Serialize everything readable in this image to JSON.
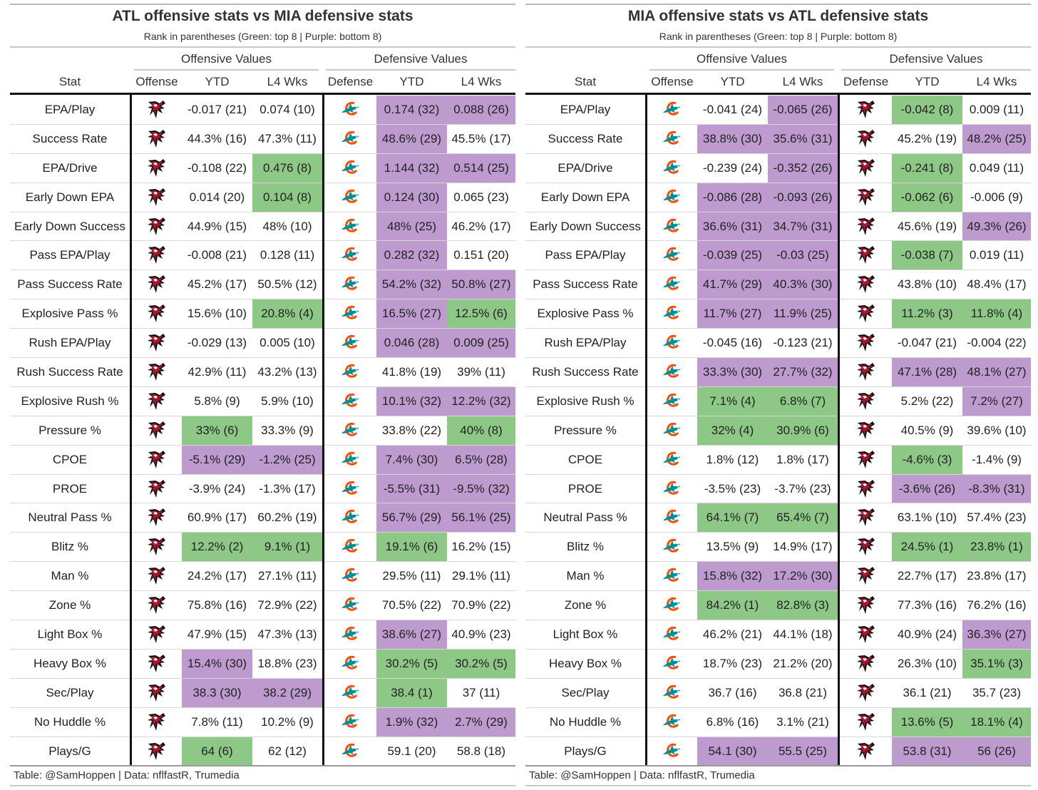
{
  "colors": {
    "green": "#8dc887",
    "purple": "#bd9bce",
    "falcons_red": "#a71930",
    "dolphins_aqua": "#008e97",
    "dolphins_orange": "#fc4c02"
  },
  "legend": {
    "g": "top 8",
    "p": "bottom 8"
  },
  "columns": {
    "stat": "Stat",
    "offense": "Offense",
    "defense": "Defense",
    "ytd": "YTD",
    "l4": "L4 Wks",
    "offensive_values": "Offensive Values",
    "defensive_values": "Defensive Values"
  },
  "panels": [
    {
      "title": "ATL offensive stats vs MIA defensive stats",
      "subtitle": "Rank in parentheses (Green: top 8 | Purple: bottom 8)",
      "offense_team": "ATL",
      "offense_logo": "falcons-logo-icon",
      "defense_team": "MIA",
      "defense_logo": "dolphins-logo-icon",
      "credit": "Table: @SamHoppen | Data: nflfastR, Trumedia",
      "rows": [
        {
          "stat": "EPA/Play",
          "off_ytd": "-0.017 (21)",
          "off_ytd_c": "",
          "off_l4": "0.074 (10)",
          "off_l4_c": "",
          "def_ytd": "0.174 (32)",
          "def_ytd_c": "p",
          "def_l4": "0.088 (26)",
          "def_l4_c": "p"
        },
        {
          "stat": "Success Rate",
          "off_ytd": "44.3% (16)",
          "off_ytd_c": "",
          "off_l4": "47.3% (11)",
          "off_l4_c": "",
          "def_ytd": "48.6% (29)",
          "def_ytd_c": "p",
          "def_l4": "45.5% (17)",
          "def_l4_c": ""
        },
        {
          "stat": "EPA/Drive",
          "off_ytd": "-0.108 (22)",
          "off_ytd_c": "",
          "off_l4": "0.476 (8)",
          "off_l4_c": "g",
          "def_ytd": "1.144 (32)",
          "def_ytd_c": "p",
          "def_l4": "0.514 (25)",
          "def_l4_c": "p"
        },
        {
          "stat": "Early Down EPA",
          "off_ytd": "0.014 (20)",
          "off_ytd_c": "",
          "off_l4": "0.104 (8)",
          "off_l4_c": "g",
          "def_ytd": "0.124 (30)",
          "def_ytd_c": "p",
          "def_l4": "0.065 (23)",
          "def_l4_c": ""
        },
        {
          "stat": "Early Down Success",
          "off_ytd": "44.9% (15)",
          "off_ytd_c": "",
          "off_l4": "48% (10)",
          "off_l4_c": "",
          "def_ytd": "48% (25)",
          "def_ytd_c": "p",
          "def_l4": "46.2% (17)",
          "def_l4_c": ""
        },
        {
          "stat": "Pass EPA/Play",
          "off_ytd": "-0.008 (21)",
          "off_ytd_c": "",
          "off_l4": "0.128 (11)",
          "off_l4_c": "",
          "def_ytd": "0.282 (32)",
          "def_ytd_c": "p",
          "def_l4": "0.151 (20)",
          "def_l4_c": ""
        },
        {
          "stat": "Pass Success Rate",
          "off_ytd": "45.2% (17)",
          "off_ytd_c": "",
          "off_l4": "50.5% (12)",
          "off_l4_c": "",
          "def_ytd": "54.2% (32)",
          "def_ytd_c": "p",
          "def_l4": "50.8% (27)",
          "def_l4_c": "p"
        },
        {
          "stat": "Explosive Pass %",
          "off_ytd": "15.6% (10)",
          "off_ytd_c": "",
          "off_l4": "20.8% (4)",
          "off_l4_c": "g",
          "def_ytd": "16.5% (27)",
          "def_ytd_c": "p",
          "def_l4": "12.5% (6)",
          "def_l4_c": "g"
        },
        {
          "stat": "Rush EPA/Play",
          "off_ytd": "-0.029 (13)",
          "off_ytd_c": "",
          "off_l4": "0.005 (10)",
          "off_l4_c": "",
          "def_ytd": "0.046 (28)",
          "def_ytd_c": "p",
          "def_l4": "0.009 (25)",
          "def_l4_c": "p"
        },
        {
          "stat": "Rush Success Rate",
          "off_ytd": "42.9% (11)",
          "off_ytd_c": "",
          "off_l4": "43.2% (13)",
          "off_l4_c": "",
          "def_ytd": "41.8% (19)",
          "def_ytd_c": "",
          "def_l4": "39% (11)",
          "def_l4_c": ""
        },
        {
          "stat": "Explosive Rush %",
          "off_ytd": "5.8% (9)",
          "off_ytd_c": "",
          "off_l4": "5.9% (10)",
          "off_l4_c": "",
          "def_ytd": "10.1% (32)",
          "def_ytd_c": "p",
          "def_l4": "12.2% (32)",
          "def_l4_c": "p"
        },
        {
          "stat": "Pressure %",
          "off_ytd": "33% (6)",
          "off_ytd_c": "g",
          "off_l4": "33.3% (9)",
          "off_l4_c": "",
          "def_ytd": "33.8% (22)",
          "def_ytd_c": "",
          "def_l4": "40% (8)",
          "def_l4_c": "g"
        },
        {
          "stat": "CPOE",
          "off_ytd": "-5.1% (29)",
          "off_ytd_c": "p",
          "off_l4": "-1.2% (25)",
          "off_l4_c": "p",
          "def_ytd": "7.4% (30)",
          "def_ytd_c": "p",
          "def_l4": "6.5% (28)",
          "def_l4_c": "p"
        },
        {
          "stat": "PROE",
          "off_ytd": "-3.9% (24)",
          "off_ytd_c": "",
          "off_l4": "-1.3% (17)",
          "off_l4_c": "",
          "def_ytd": "-5.5% (31)",
          "def_ytd_c": "p",
          "def_l4": "-9.5% (32)",
          "def_l4_c": "p"
        },
        {
          "stat": "Neutral Pass %",
          "off_ytd": "60.9% (17)",
          "off_ytd_c": "",
          "off_l4": "60.2% (19)",
          "off_l4_c": "",
          "def_ytd": "56.7% (29)",
          "def_ytd_c": "p",
          "def_l4": "56.1% (25)",
          "def_l4_c": "p"
        },
        {
          "stat": "Blitz %",
          "off_ytd": "12.2% (2)",
          "off_ytd_c": "g",
          "off_l4": "9.1% (1)",
          "off_l4_c": "g",
          "def_ytd": "19.1% (6)",
          "def_ytd_c": "g",
          "def_l4": "16.2% (15)",
          "def_l4_c": ""
        },
        {
          "stat": "Man %",
          "off_ytd": "24.2% (17)",
          "off_ytd_c": "",
          "off_l4": "27.1% (11)",
          "off_l4_c": "",
          "def_ytd": "29.5% (11)",
          "def_ytd_c": "",
          "def_l4": "29.1% (11)",
          "def_l4_c": ""
        },
        {
          "stat": "Zone %",
          "off_ytd": "75.8% (16)",
          "off_ytd_c": "",
          "off_l4": "72.9% (22)",
          "off_l4_c": "",
          "def_ytd": "70.5% (22)",
          "def_ytd_c": "",
          "def_l4": "70.9% (22)",
          "def_l4_c": ""
        },
        {
          "stat": "Light Box %",
          "off_ytd": "47.9% (15)",
          "off_ytd_c": "",
          "off_l4": "47.3% (13)",
          "off_l4_c": "",
          "def_ytd": "38.6% (27)",
          "def_ytd_c": "p",
          "def_l4": "40.9% (23)",
          "def_l4_c": ""
        },
        {
          "stat": "Heavy Box %",
          "off_ytd": "15.4% (30)",
          "off_ytd_c": "p",
          "off_l4": "18.8% (23)",
          "off_l4_c": "",
          "def_ytd": "30.2% (5)",
          "def_ytd_c": "g",
          "def_l4": "30.2% (5)",
          "def_l4_c": "g"
        },
        {
          "stat": "Sec/Play",
          "off_ytd": "38.3 (30)",
          "off_ytd_c": "p",
          "off_l4": "38.2 (29)",
          "off_l4_c": "p",
          "def_ytd": "38.4 (1)",
          "def_ytd_c": "g",
          "def_l4": "37 (11)",
          "def_l4_c": ""
        },
        {
          "stat": "No Huddle %",
          "off_ytd": "7.8% (11)",
          "off_ytd_c": "",
          "off_l4": "10.2% (9)",
          "off_l4_c": "",
          "def_ytd": "1.9% (32)",
          "def_ytd_c": "p",
          "def_l4": "2.7% (29)",
          "def_l4_c": "p"
        },
        {
          "stat": "Plays/G",
          "off_ytd": "64 (6)",
          "off_ytd_c": "g",
          "off_l4": "62 (12)",
          "off_l4_c": "",
          "def_ytd": "59.1 (20)",
          "def_ytd_c": "",
          "def_l4": "58.8 (18)",
          "def_l4_c": ""
        }
      ]
    },
    {
      "title": "MIA offensive stats vs ATL defensive stats",
      "subtitle": "Rank in parentheses (Green: top 8 | Purple: bottom 8)",
      "offense_team": "MIA",
      "offense_logo": "dolphins-logo-icon",
      "defense_team": "ATL",
      "defense_logo": "falcons-logo-icon",
      "credit": "Table: @SamHoppen | Data: nflfastR, Trumedia",
      "rows": [
        {
          "stat": "EPA/Play",
          "off_ytd": "-0.041 (24)",
          "off_ytd_c": "",
          "off_l4": "-0.065 (26)",
          "off_l4_c": "p",
          "def_ytd": "-0.042 (8)",
          "def_ytd_c": "g",
          "def_l4": "0.009 (11)",
          "def_l4_c": ""
        },
        {
          "stat": "Success Rate",
          "off_ytd": "38.8% (30)",
          "off_ytd_c": "p",
          "off_l4": "35.6% (31)",
          "off_l4_c": "p",
          "def_ytd": "45.2% (19)",
          "def_ytd_c": "",
          "def_l4": "48.2% (25)",
          "def_l4_c": "p"
        },
        {
          "stat": "EPA/Drive",
          "off_ytd": "-0.239 (24)",
          "off_ytd_c": "",
          "off_l4": "-0.352 (26)",
          "off_l4_c": "p",
          "def_ytd": "-0.241 (8)",
          "def_ytd_c": "g",
          "def_l4": "0.049 (11)",
          "def_l4_c": ""
        },
        {
          "stat": "Early Down EPA",
          "off_ytd": "-0.086 (28)",
          "off_ytd_c": "p",
          "off_l4": "-0.093 (26)",
          "off_l4_c": "p",
          "def_ytd": "-0.062 (6)",
          "def_ytd_c": "g",
          "def_l4": "-0.006 (9)",
          "def_l4_c": ""
        },
        {
          "stat": "Early Down Success",
          "off_ytd": "36.6% (31)",
          "off_ytd_c": "p",
          "off_l4": "34.7% (31)",
          "off_l4_c": "p",
          "def_ytd": "45.6% (19)",
          "def_ytd_c": "",
          "def_l4": "49.3% (26)",
          "def_l4_c": "p"
        },
        {
          "stat": "Pass EPA/Play",
          "off_ytd": "-0.039 (25)",
          "off_ytd_c": "p",
          "off_l4": "-0.03 (25)",
          "off_l4_c": "p",
          "def_ytd": "-0.038 (7)",
          "def_ytd_c": "g",
          "def_l4": "0.019 (11)",
          "def_l4_c": ""
        },
        {
          "stat": "Pass Success Rate",
          "off_ytd": "41.7% (29)",
          "off_ytd_c": "p",
          "off_l4": "40.3% (30)",
          "off_l4_c": "p",
          "def_ytd": "43.8% (10)",
          "def_ytd_c": "",
          "def_l4": "48.4% (17)",
          "def_l4_c": ""
        },
        {
          "stat": "Explosive Pass %",
          "off_ytd": "11.7% (27)",
          "off_ytd_c": "p",
          "off_l4": "11.9% (25)",
          "off_l4_c": "p",
          "def_ytd": "11.2% (3)",
          "def_ytd_c": "g",
          "def_l4": "11.8% (4)",
          "def_l4_c": "g"
        },
        {
          "stat": "Rush EPA/Play",
          "off_ytd": "-0.045 (16)",
          "off_ytd_c": "",
          "off_l4": "-0.123 (21)",
          "off_l4_c": "",
          "def_ytd": "-0.047 (21)",
          "def_ytd_c": "",
          "def_l4": "-0.004 (22)",
          "def_l4_c": ""
        },
        {
          "stat": "Rush Success Rate",
          "off_ytd": "33.3% (30)",
          "off_ytd_c": "p",
          "off_l4": "27.7% (32)",
          "off_l4_c": "p",
          "def_ytd": "47.1% (28)",
          "def_ytd_c": "p",
          "def_l4": "48.1% (27)",
          "def_l4_c": "p"
        },
        {
          "stat": "Explosive Rush %",
          "off_ytd": "7.1% (4)",
          "off_ytd_c": "g",
          "off_l4": "6.8% (7)",
          "off_l4_c": "g",
          "def_ytd": "5.2% (22)",
          "def_ytd_c": "",
          "def_l4": "7.2% (27)",
          "def_l4_c": "p"
        },
        {
          "stat": "Pressure %",
          "off_ytd": "32% (4)",
          "off_ytd_c": "g",
          "off_l4": "30.9% (6)",
          "off_l4_c": "g",
          "def_ytd": "40.5% (9)",
          "def_ytd_c": "",
          "def_l4": "39.6% (10)",
          "def_l4_c": ""
        },
        {
          "stat": "CPOE",
          "off_ytd": "1.8% (12)",
          "off_ytd_c": "",
          "off_l4": "1.8% (17)",
          "off_l4_c": "",
          "def_ytd": "-4.6% (3)",
          "def_ytd_c": "g",
          "def_l4": "-1.4% (9)",
          "def_l4_c": ""
        },
        {
          "stat": "PROE",
          "off_ytd": "-3.5% (23)",
          "off_ytd_c": "",
          "off_l4": "-3.7% (23)",
          "off_l4_c": "",
          "def_ytd": "-3.6% (26)",
          "def_ytd_c": "p",
          "def_l4": "-8.3% (31)",
          "def_l4_c": "p"
        },
        {
          "stat": "Neutral Pass %",
          "off_ytd": "64.1% (7)",
          "off_ytd_c": "g",
          "off_l4": "65.4% (7)",
          "off_l4_c": "g",
          "def_ytd": "63.1% (10)",
          "def_ytd_c": "",
          "def_l4": "57.4% (23)",
          "def_l4_c": ""
        },
        {
          "stat": "Blitz %",
          "off_ytd": "13.5% (9)",
          "off_ytd_c": "",
          "off_l4": "14.9% (17)",
          "off_l4_c": "",
          "def_ytd": "24.5% (1)",
          "def_ytd_c": "g",
          "def_l4": "23.8% (1)",
          "def_l4_c": "g"
        },
        {
          "stat": "Man %",
          "off_ytd": "15.8% (32)",
          "off_ytd_c": "p",
          "off_l4": "17.2% (30)",
          "off_l4_c": "p",
          "def_ytd": "22.7% (17)",
          "def_ytd_c": "",
          "def_l4": "23.8% (17)",
          "def_l4_c": ""
        },
        {
          "stat": "Zone %",
          "off_ytd": "84.2% (1)",
          "off_ytd_c": "g",
          "off_l4": "82.8% (3)",
          "off_l4_c": "g",
          "def_ytd": "77.3% (16)",
          "def_ytd_c": "",
          "def_l4": "76.2% (16)",
          "def_l4_c": ""
        },
        {
          "stat": "Light Box %",
          "off_ytd": "46.2% (21)",
          "off_ytd_c": "",
          "off_l4": "44.1% (18)",
          "off_l4_c": "",
          "def_ytd": "40.9% (24)",
          "def_ytd_c": "",
          "def_l4": "36.3% (27)",
          "def_l4_c": "p"
        },
        {
          "stat": "Heavy Box %",
          "off_ytd": "18.7% (23)",
          "off_ytd_c": "",
          "off_l4": "21.2% (20)",
          "off_l4_c": "",
          "def_ytd": "26.3% (10)",
          "def_ytd_c": "",
          "def_l4": "35.1% (3)",
          "def_l4_c": "g"
        },
        {
          "stat": "Sec/Play",
          "off_ytd": "36.7 (16)",
          "off_ytd_c": "",
          "off_l4": "36.8 (21)",
          "off_l4_c": "",
          "def_ytd": "36.1 (21)",
          "def_ytd_c": "",
          "def_l4": "35.7 (23)",
          "def_l4_c": ""
        },
        {
          "stat": "No Huddle %",
          "off_ytd": "6.8% (16)",
          "off_ytd_c": "",
          "off_l4": "3.1% (21)",
          "off_l4_c": "",
          "def_ytd": "13.6% (5)",
          "def_ytd_c": "g",
          "def_l4": "18.1% (4)",
          "def_l4_c": "g"
        },
        {
          "stat": "Plays/G",
          "off_ytd": "54.1 (30)",
          "off_ytd_c": "p",
          "off_l4": "55.5 (25)",
          "off_l4_c": "p",
          "def_ytd": "53.8 (31)",
          "def_ytd_c": "p",
          "def_l4": "56 (26)",
          "def_l4_c": "p"
        }
      ]
    }
  ]
}
